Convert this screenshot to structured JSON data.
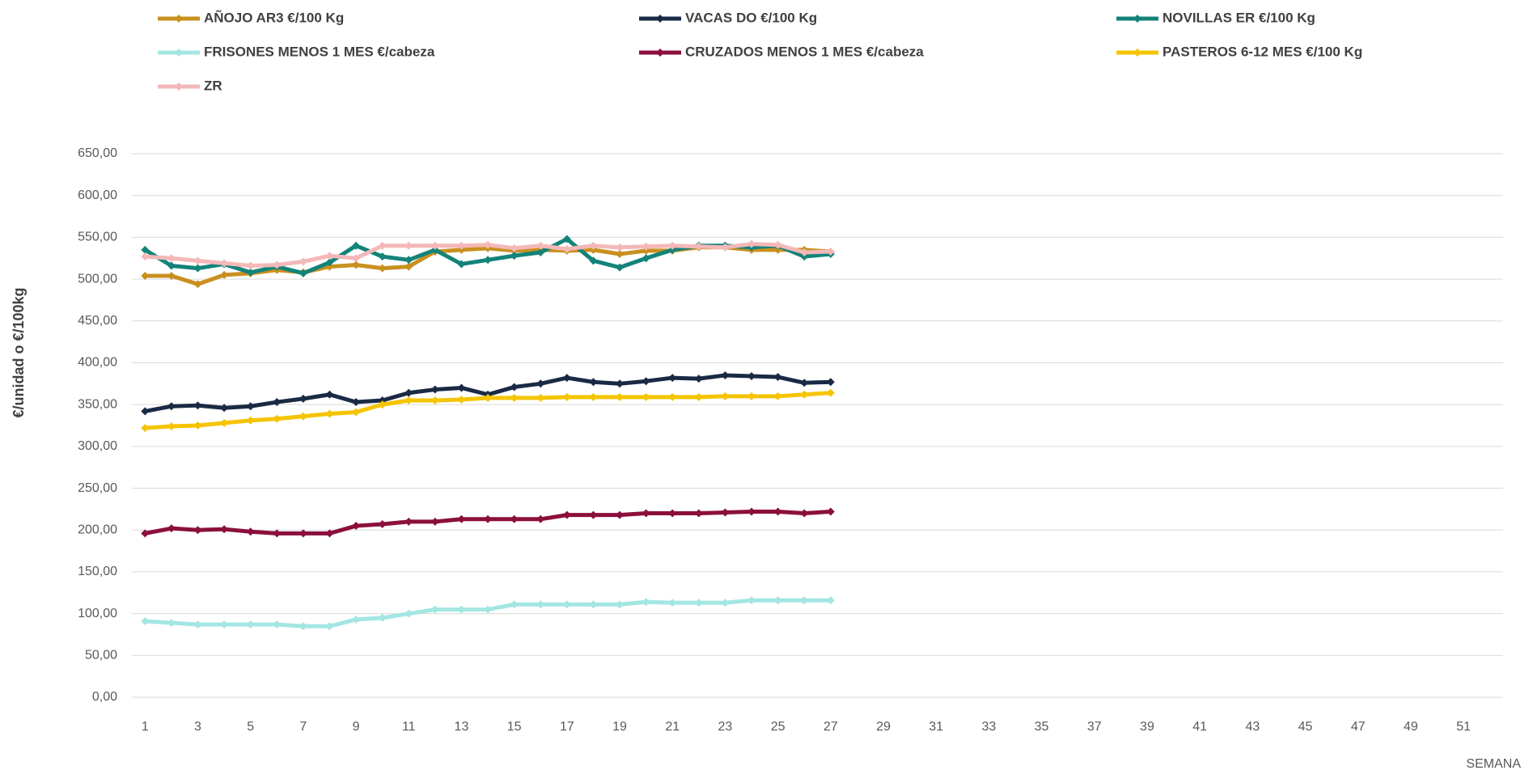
{
  "chart_data": {
    "type": "line",
    "y_label": "€/unidad o €/100kg",
    "x_label": "SEMANA",
    "categories": [
      1,
      null,
      3,
      null,
      5,
      null,
      7,
      null,
      9,
      null,
      11,
      null,
      13,
      null,
      15,
      null,
      17,
      null,
      19,
      null,
      21,
      null,
      23,
      null,
      25,
      null,
      27,
      null,
      29,
      null,
      31,
      null,
      33,
      null,
      35,
      null,
      37,
      null,
      39,
      null,
      41,
      null,
      43,
      null,
      45,
      null,
      47,
      null,
      49,
      null,
      51,
      null
    ],
    "ylim": [
      0,
      650
    ],
    "yticks": [
      {
        "value": 0,
        "label": "0,00"
      },
      {
        "value": 50,
        "label": "50,00"
      },
      {
        "value": 100,
        "label": "100,00"
      },
      {
        "value": 150,
        "label": "150,00"
      },
      {
        "value": 200,
        "label": "200,00"
      },
      {
        "value": 250,
        "label": "250,00"
      },
      {
        "value": 300,
        "label": "300,00"
      },
      {
        "value": 350,
        "label": "350,00"
      },
      {
        "value": 400,
        "label": "400,00"
      },
      {
        "value": 450,
        "label": "450,00"
      },
      {
        "value": 500,
        "label": "500,00"
      },
      {
        "value": 550,
        "label": "550,00"
      },
      {
        "value": 600,
        "label": "600,00"
      },
      {
        "value": 650,
        "label": "650,00"
      }
    ],
    "grid": true,
    "legend": "top",
    "series": [
      {
        "name": "AÑOJO AR3 €/100 Kg",
        "color": "#c9901f",
        "values": [
          504,
          504,
          494,
          505,
          507,
          511,
          508,
          515,
          517,
          513,
          515,
          533,
          535,
          537,
          534,
          535,
          534,
          535,
          530,
          534,
          534,
          538,
          538,
          535,
          535,
          535,
          533,
          null,
          null,
          null,
          null,
          null,
          null,
          null,
          null,
          null,
          null,
          null,
          null,
          null,
          null,
          null,
          null,
          null,
          null,
          null,
          null,
          null,
          null,
          null,
          null,
          null
        ]
      },
      {
        "name": "VACAS DO €/100 Kg",
        "color": "#1a2a45",
        "values": [
          342,
          348,
          349,
          346,
          348,
          353,
          357,
          362,
          353,
          355,
          364,
          368,
          370,
          362,
          371,
          375,
          382,
          377,
          375,
          378,
          382,
          381,
          385,
          384,
          383,
          376,
          377,
          null,
          null,
          null,
          null,
          null,
          null,
          null,
          null,
          null,
          null,
          null,
          null,
          null,
          null,
          null,
          null,
          null,
          null,
          null,
          null,
          null,
          null,
          null,
          null,
          null
        ]
      },
      {
        "name": "NOVILLAS ER €/100 Kg",
        "color": "#13837a",
        "values": [
          535,
          516,
          513,
          518,
          508,
          515,
          507,
          520,
          540,
          527,
          523,
          535,
          518,
          523,
          528,
          532,
          548,
          522,
          514,
          525,
          535,
          540,
          540,
          538,
          540,
          527,
          530,
          null,
          null,
          null,
          null,
          null,
          null,
          null,
          null,
          null,
          null,
          null,
          null,
          null,
          null,
          null,
          null,
          null,
          null,
          null,
          null,
          null,
          null,
          null,
          null,
          null
        ]
      },
      {
        "name": "FRISONES MENOS 1 MES €/cabeza",
        "color": "#a3e6e2",
        "values": [
          91,
          89,
          87,
          87,
          87,
          87,
          85,
          85,
          93,
          95,
          100,
          105,
          105,
          105,
          111,
          111,
          111,
          111,
          111,
          114,
          113,
          113,
          113,
          116,
          116,
          116,
          116,
          null,
          null,
          null,
          null,
          null,
          null,
          null,
          null,
          null,
          null,
          null,
          null,
          null,
          null,
          null,
          null,
          null,
          null,
          null,
          null,
          null,
          null,
          null,
          null,
          null
        ]
      },
      {
        "name": "CRUZADOS MENOS 1 MES €/cabeza",
        "color": "#8b0f3c",
        "values": [
          196,
          202,
          200,
          201,
          198,
          196,
          196,
          196,
          205,
          207,
          210,
          210,
          213,
          213,
          213,
          213,
          218,
          218,
          218,
          220,
          220,
          220,
          221,
          222,
          222,
          220,
          222,
          null,
          null,
          null,
          null,
          null,
          null,
          null,
          null,
          null,
          null,
          null,
          null,
          null,
          null,
          null,
          null,
          null,
          null,
          null,
          null,
          null,
          null,
          null,
          null,
          null
        ]
      },
      {
        "name": "PASTEROS 6-12 MES €/100 Kg",
        "color": "#f5c400",
        "values": [
          322,
          324,
          325,
          328,
          331,
          333,
          336,
          339,
          341,
          350,
          355,
          355,
          356,
          358,
          358,
          358,
          359,
          359,
          359,
          359,
          359,
          359,
          360,
          360,
          360,
          362,
          364,
          null,
          null,
          null,
          null,
          null,
          null,
          null,
          null,
          null,
          null,
          null,
          null,
          null,
          null,
          null,
          null,
          null,
          null,
          null,
          null,
          null,
          null,
          null,
          null,
          null
        ]
      },
      {
        "name": "ZR",
        "color": "#f4b8b8",
        "values": [
          527,
          525,
          522,
          519,
          516,
          517,
          521,
          528,
          525,
          540,
          540,
          540,
          540,
          541,
          537,
          540,
          536,
          540,
          538,
          539,
          540,
          539,
          538,
          542,
          541,
          532,
          533,
          null,
          null,
          null,
          null,
          null,
          null,
          null,
          null,
          null,
          null,
          null,
          null,
          null,
          null,
          null,
          null,
          null,
          null,
          null,
          null,
          null,
          null,
          null,
          null,
          null
        ]
      }
    ]
  }
}
